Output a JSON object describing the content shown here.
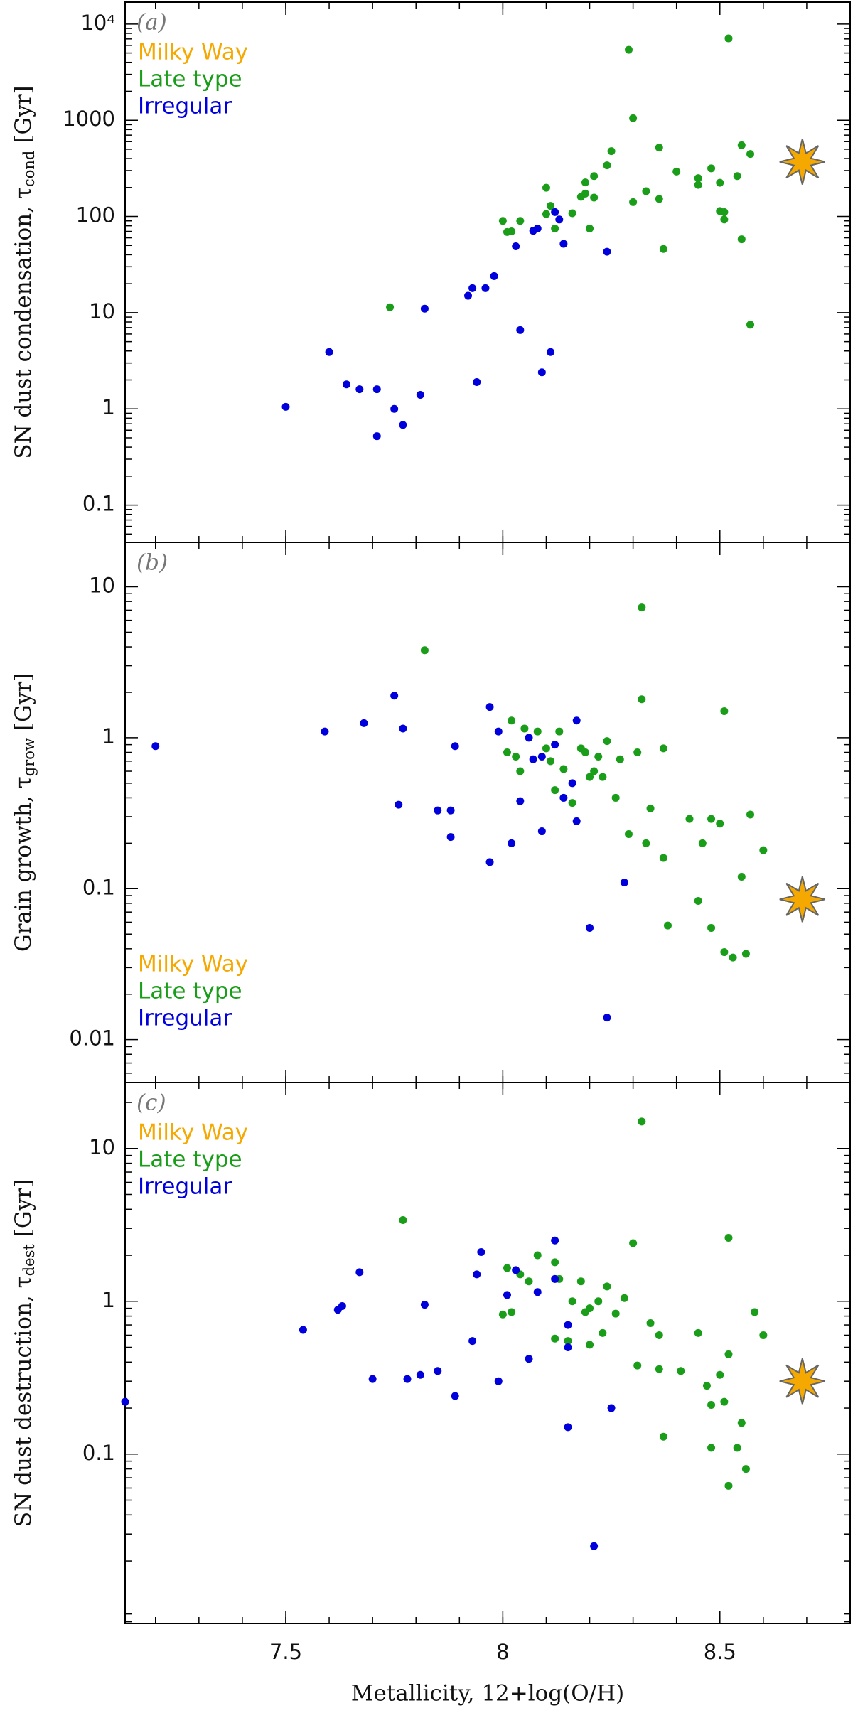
{
  "chart_data": [
    {
      "type": "scatter",
      "panel_label": "(a)",
      "ylabel": "SN dust condensation, τ",
      "ylabel_sub": "cond",
      "ylabel_unit": "[Gyr]",
      "xlim": [
        7.13,
        8.8
      ],
      "xticks": [
        7.5,
        8,
        8.5
      ],
      "ylim": [
        0.041,
        16900
      ],
      "log_y": true,
      "yticks": [
        0.1,
        1,
        10,
        100,
        1000,
        {
          "value": 10000,
          "label": "10⁴"
        }
      ],
      "legend": "upper left",
      "series": [
        {
          "name": "Milky Way",
          "color": "#f5a800",
          "marker": "star",
          "x": [
            8.69
          ],
          "values": [
            370
          ]
        },
        {
          "name": "Late type",
          "color": "#1a9e1a",
          "marker": "dot",
          "x": [
            7.74,
            8.0,
            8.01,
            8.02,
            8.04,
            8.1,
            8.1,
            8.11,
            8.12,
            8.16,
            8.18,
            8.19,
            8.19,
            8.2,
            8.21,
            8.21,
            8.24,
            8.25,
            8.29,
            8.3,
            8.3,
            8.33,
            8.36,
            8.36,
            8.37,
            8.4,
            8.45,
            8.45,
            8.48,
            8.5,
            8.5,
            8.51,
            8.51,
            8.52,
            8.54,
            8.55,
            8.55,
            8.57,
            8.57
          ],
          "values": [
            11.4,
            90,
            69,
            70,
            90,
            106,
            199,
            129,
            75,
            108,
            160,
            226,
            173,
            75,
            157,
            263,
            340,
            478,
            5400,
            1050,
            141,
            183,
            152,
            520,
            46,
            293,
            250,
            213,
            316,
            114,
            224,
            93,
            111,
            7100,
            263,
            58,
            550,
            7.5,
            446
          ]
        },
        {
          "name": "Irregular",
          "color": "#0000dd",
          "marker": "dot",
          "x": [
            7.5,
            7.6,
            7.64,
            7.67,
            7.71,
            7.71,
            7.75,
            7.77,
            7.81,
            7.82,
            7.92,
            7.93,
            7.96,
            7.98,
            7.94,
            8.03,
            8.04,
            8.07,
            8.08,
            8.09,
            8.11,
            8.12,
            8.13,
            8.14,
            8.24
          ],
          "values": [
            1.05,
            3.9,
            1.8,
            1.6,
            1.6,
            0.52,
            1.0,
            0.68,
            1.4,
            11,
            15,
            18,
            18,
            24,
            1.9,
            49,
            6.6,
            71,
            75,
            2.4,
            3.9,
            111,
            93,
            52,
            43
          ]
        }
      ]
    },
    {
      "type": "scatter",
      "panel_label": "(b)",
      "ylabel": "Grain growth, τ",
      "ylabel_sub": "grow",
      "ylabel_unit": "[Gyr]",
      "xlim": [
        7.13,
        8.8
      ],
      "xticks": [
        7.5,
        8,
        8.5
      ],
      "ylim": [
        0.0052,
        19.7
      ],
      "log_y": true,
      "yticks": [
        0.01,
        0.1,
        1,
        10
      ],
      "legend": "lower left",
      "series": [
        {
          "name": "Milky Way",
          "color": "#f5a800",
          "marker": "star",
          "x": [
            8.69
          ],
          "values": [
            0.085
          ]
        },
        {
          "name": "Late type",
          "color": "#1a9e1a",
          "marker": "dot",
          "x": [
            7.82,
            8.01,
            8.02,
            8.03,
            8.04,
            8.05,
            8.08,
            8.1,
            8.11,
            8.12,
            8.13,
            8.14,
            8.16,
            8.18,
            8.19,
            8.2,
            8.21,
            8.22,
            8.23,
            8.24,
            8.26,
            8.27,
            8.29,
            8.31,
            8.32,
            8.32,
            8.33,
            8.34,
            8.37,
            8.37,
            8.38,
            8.43,
            8.45,
            8.46,
            8.48,
            8.48,
            8.5,
            8.51,
            8.51,
            8.53,
            8.55,
            8.56,
            8.57,
            8.6
          ],
          "values": [
            3.8,
            0.8,
            1.3,
            0.75,
            0.6,
            1.15,
            1.1,
            0.85,
            0.7,
            0.45,
            1.1,
            0.62,
            0.37,
            0.85,
            0.8,
            0.55,
            0.6,
            0.75,
            0.55,
            0.95,
            0.4,
            0.72,
            0.23,
            0.8,
            7.3,
            1.8,
            0.2,
            0.34,
            0.85,
            0.16,
            0.057,
            0.29,
            0.083,
            0.2,
            0.29,
            0.055,
            0.27,
            1.5,
            0.038,
            0.035,
            0.12,
            0.037,
            0.31,
            0.18
          ]
        },
        {
          "name": "Irregular",
          "color": "#0000dd",
          "marker": "dot",
          "x": [
            7.2,
            7.59,
            7.68,
            7.75,
            7.76,
            7.77,
            7.85,
            7.88,
            7.88,
            7.89,
            7.97,
            7.97,
            7.99,
            8.02,
            8.04,
            8.06,
            8.07,
            8.09,
            8.09,
            8.12,
            8.14,
            8.16,
            8.17,
            8.17,
            8.2,
            8.24,
            8.28
          ],
          "values": [
            0.88,
            1.1,
            1.25,
            1.9,
            0.36,
            1.15,
            0.33,
            0.33,
            0.22,
            0.88,
            1.6,
            0.15,
            1.1,
            0.2,
            0.38,
            1.0,
            0.72,
            0.75,
            0.24,
            0.9,
            0.4,
            0.5,
            1.3,
            0.28,
            0.055,
            0.014,
            0.11
          ]
        }
      ]
    },
    {
      "type": "scatter",
      "panel_label": "(c)",
      "ylabel": "SN dust destruction, τ",
      "ylabel_sub": "dest",
      "ylabel_unit": "[Gyr]",
      "xlabel": "Metallicity, 12+log(O/H)",
      "xlim": [
        7.13,
        8.8
      ],
      "xticks": [
        7.5,
        8,
        8.5
      ],
      "ylim": [
        0.0078,
        27
      ],
      "log_y": true,
      "yticks": [
        0.1,
        1,
        10
      ],
      "legend": "upper left",
      "series": [
        {
          "name": "Milky Way",
          "color": "#f5a800",
          "marker": "star",
          "x": [
            8.69
          ],
          "values": [
            0.3
          ]
        },
        {
          "name": "Late type",
          "color": "#1a9e1a",
          "marker": "dot",
          "x": [
            7.77,
            8.0,
            8.01,
            8.02,
            8.04,
            8.06,
            8.08,
            8.12,
            8.12,
            8.13,
            8.15,
            8.16,
            8.18,
            8.19,
            8.2,
            8.2,
            8.22,
            8.23,
            8.24,
            8.26,
            8.28,
            8.3,
            8.31,
            8.32,
            8.34,
            8.36,
            8.36,
            8.37,
            8.41,
            8.45,
            8.47,
            8.48,
            8.48,
            8.5,
            8.51,
            8.52,
            8.52,
            8.52,
            8.54,
            8.55,
            8.56,
            8.58,
            8.6
          ],
          "values": [
            3.4,
            0.82,
            1.65,
            0.85,
            1.5,
            1.35,
            2.0,
            1.8,
            0.57,
            1.4,
            0.55,
            1.0,
            1.35,
            0.85,
            0.9,
            0.52,
            1.0,
            0.62,
            1.25,
            0.83,
            1.05,
            2.4,
            0.38,
            15,
            0.72,
            0.36,
            0.6,
            0.13,
            0.35,
            0.62,
            0.28,
            0.21,
            0.11,
            0.33,
            0.22,
            0.062,
            2.6,
            0.45,
            0.11,
            0.16,
            0.08,
            0.85,
            0.6
          ]
        },
        {
          "name": "Irregular",
          "color": "#0000dd",
          "marker": "dot",
          "x": [
            7.13,
            7.54,
            7.62,
            7.63,
            7.67,
            7.7,
            7.78,
            7.81,
            7.82,
            7.85,
            7.89,
            7.93,
            7.94,
            7.95,
            7.99,
            8.01,
            8.03,
            8.06,
            8.08,
            8.12,
            8.12,
            8.15,
            8.15,
            8.15,
            8.21,
            8.25
          ],
          "values": [
            0.22,
            0.65,
            0.88,
            0.93,
            1.55,
            0.31,
            0.31,
            0.33,
            0.95,
            0.35,
            0.24,
            0.55,
            1.5,
            2.1,
            0.3,
            1.1,
            1.6,
            0.42,
            1.15,
            1.4,
            2.5,
            0.15,
            0.5,
            0.7,
            0.025,
            0.2
          ]
        }
      ]
    }
  ]
}
